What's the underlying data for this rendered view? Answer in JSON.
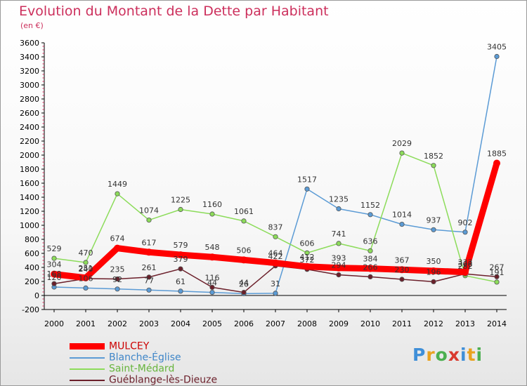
{
  "chart_data": {
    "type": "line",
    "title": "Evolution du Montant de la Dette par Habitant",
    "subtitle": "(en €)",
    "x": [
      "2000",
      "2001",
      "2002",
      "2003",
      "2004",
      "2005",
      "2006",
      "2007",
      "2008",
      "2009",
      "2010",
      "2011",
      "2012",
      "2013",
      "2014"
    ],
    "ylim": [
      -200,
      3600
    ],
    "yticks": [
      -200,
      0,
      200,
      400,
      600,
      800,
      1000,
      1200,
      1400,
      1600,
      1800,
      2000,
      2200,
      2400,
      2600,
      2800,
      3000,
      3200,
      3400,
      3600
    ],
    "grid": false,
    "legend_position": "bottom-left",
    "series": [
      {
        "name": "MULCEY",
        "color": "#ff0000",
        "values": [
          304,
          251,
          674,
          617,
          579,
          548,
          506,
          464,
          412,
          393,
          384,
          367,
          350,
          333,
          1885
        ],
        "labels": [
          "304",
          "251",
          "674",
          "617",
          "579",
          "548",
          "506",
          "464",
          "412",
          "393",
          "384",
          "367",
          "350",
          "333",
          "1885"
        ]
      },
      {
        "name": "Blanche-Église",
        "color": "#5b9bd5",
        "values": [
          120,
          106,
          92,
          77,
          61,
          44,
          26,
          31,
          1517,
          1235,
          1152,
          1014,
          937,
          902,
          3405
        ],
        "labels": [
          "120",
          "106",
          "92",
          "77",
          "61",
          "44",
          "26",
          "31",
          "1517",
          "1235",
          "1152",
          "1014",
          "937",
          "902",
          "3405"
        ]
      },
      {
        "name": "Saint-Médard",
        "color": "#8cdc5a",
        "values": [
          529,
          470,
          1449,
          1074,
          1225,
          1160,
          1061,
          837,
          606,
          741,
          636,
          2029,
          1852,
          282,
          191
        ],
        "labels": [
          "529",
          "470",
          "1449",
          "1074",
          "1225",
          "1160",
          "1061",
          "837",
          "606",
          "741",
          "636",
          "2029",
          "1852",
          "282",
          "191"
        ]
      },
      {
        "name": "Guéblange-lès-Dieuze",
        "color": "#6b1f2a",
        "values": [
          168,
          240,
          235,
          261,
          379,
          116,
          44,
          422,
          372,
          294,
          266,
          230,
          196,
          308,
          267
        ],
        "labels": [
          "168",
          "240",
          "235",
          "261",
          "379",
          "116",
          "44",
          "422",
          "372",
          "294",
          "266",
          "230",
          "196",
          "308",
          "267"
        ]
      }
    ]
  },
  "logo": {
    "text": "Proxiti"
  }
}
